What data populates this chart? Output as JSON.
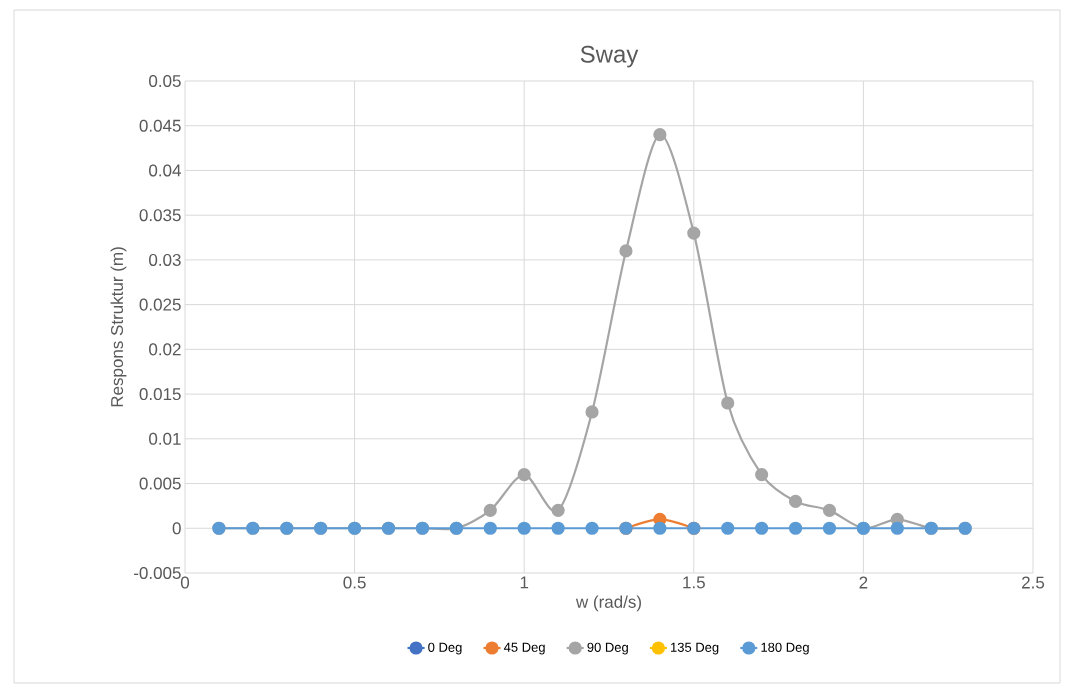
{
  "chart_data": {
    "type": "line",
    "title": "Sway",
    "xlabel": "w (rad/s)",
    "ylabel": "Respons Struktur (m)",
    "x": [
      0.1,
      0.2,
      0.3,
      0.4,
      0.5,
      0.6,
      0.7,
      0.8,
      0.9,
      1.0,
      1.1,
      1.2,
      1.3,
      1.4,
      1.5,
      1.6,
      1.7,
      1.8,
      1.9,
      2.0,
      2.1,
      2.2,
      2.3
    ],
    "series": [
      {
        "name": "0 Deg",
        "color": "#4472c4",
        "values": [
          null,
          null,
          null,
          null,
          null,
          null,
          null,
          null,
          null,
          null,
          null,
          null,
          null,
          null,
          null,
          null,
          null,
          null,
          null,
          null,
          null,
          null,
          null
        ]
      },
      {
        "name": "45 Deg",
        "color": "#ed7d31",
        "values": [
          null,
          null,
          null,
          null,
          null,
          null,
          null,
          null,
          null,
          null,
          null,
          null,
          0,
          0.001,
          0,
          null,
          null,
          null,
          null,
          null,
          null,
          null,
          null
        ]
      },
      {
        "name": "90 Deg",
        "color": "#a5a5a5",
        "values": [
          0,
          0,
          0,
          0,
          0,
          0,
          0,
          0,
          0.002,
          0.006,
          0.002,
          0.013,
          0.031,
          0.044,
          0.033,
          0.014,
          0.006,
          0.003,
          0.002,
          0,
          0.001,
          0,
          0
        ]
      },
      {
        "name": "135 Deg",
        "color": "#ffc000",
        "values": [
          null,
          null,
          null,
          null,
          null,
          null,
          null,
          null,
          null,
          null,
          null,
          null,
          null,
          null,
          null,
          null,
          null,
          null,
          null,
          null,
          null,
          null,
          null
        ]
      },
      {
        "name": "180 Deg",
        "color": "#5b9bd5",
        "values": [
          0,
          0,
          0,
          0,
          0,
          0,
          0,
          0,
          0,
          0,
          0,
          0,
          0,
          0,
          0,
          0,
          0,
          0,
          0,
          0,
          0,
          0,
          0
        ]
      }
    ],
    "xlim": [
      0,
      2.5
    ],
    "ylim": [
      -0.005,
      0.05
    ],
    "xticks": [
      0,
      0.5,
      1,
      1.5,
      2,
      2.5
    ],
    "yticks": [
      -0.005,
      0,
      0.005,
      0.01,
      0.015,
      0.02,
      0.025,
      0.03,
      0.035,
      0.04,
      0.045,
      0.05
    ],
    "grid": true,
    "legend": "bottom",
    "marker": "circle"
  }
}
